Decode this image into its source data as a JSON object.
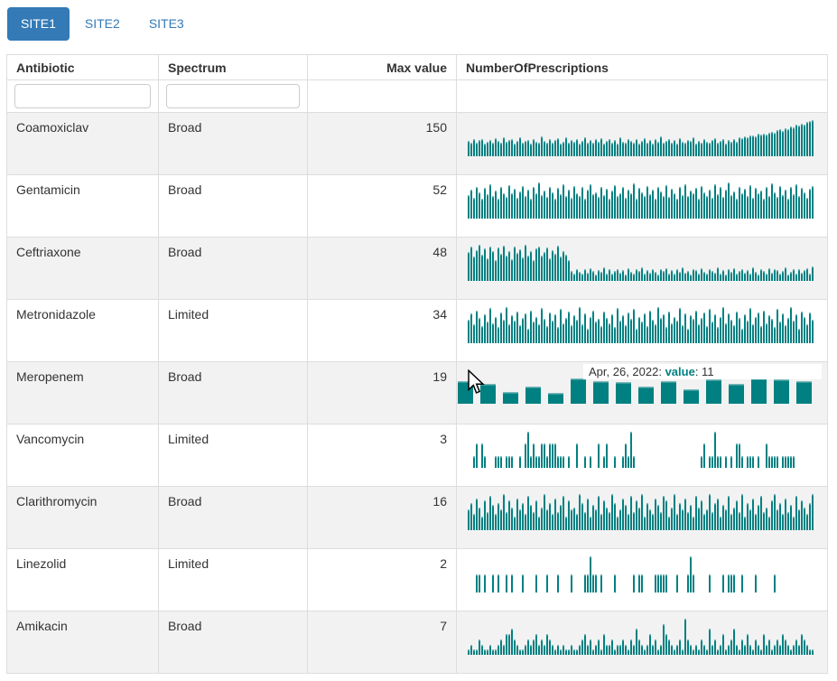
{
  "tabs": [
    {
      "label": "SITE1",
      "active": true
    },
    {
      "label": "SITE2",
      "active": false
    },
    {
      "label": "SITE3",
      "active": false
    }
  ],
  "colors": {
    "active_tab": "#337ab7",
    "tab_link": "#337ab7",
    "bar": "#008081",
    "bar_cap": "#79b8ba",
    "stripe": "#f2f2f2",
    "border": "#dddddd",
    "tooltip_value": "#008081"
  },
  "table": {
    "columns": [
      "Antibiotic",
      "Spectrum",
      "Max value",
      "NumberOfPrescriptions"
    ],
    "filters": [
      {
        "column": "Antibiotic",
        "value": ""
      },
      {
        "column": "Spectrum",
        "value": ""
      }
    ],
    "tooltip": {
      "row": "Meropenem",
      "date": "Apr, 26, 2022",
      "label": "value",
      "value": 11,
      "text_prefix": "Apr, 26, 2022: ",
      "text_label": "value",
      "text_suffix": ": 11"
    },
    "rows": [
      {
        "antibiotic": "Coamoxiclav",
        "spectrum": "Broad",
        "max_value": 150,
        "spark": {
          "type": "bar",
          "max": 150,
          "hovered": false,
          "values": [
            62,
            55,
            70,
            58,
            66,
            73,
            52,
            60,
            68,
            57,
            75,
            63,
            55,
            80,
            59,
            66,
            71,
            54,
            62,
            77,
            58,
            65,
            69,
            53,
            72,
            60,
            56,
            83,
            64,
            58,
            70,
            55,
            67,
            74,
            52,
            61,
            78,
            57,
            66,
            59,
            72,
            54,
            63,
            80,
            58,
            67,
            55,
            70,
            61,
            75,
            53,
            64,
            71,
            57,
            68,
            52,
            77,
            60,
            55,
            73,
            65,
            58,
            70,
            54,
            62,
            76,
            57,
            66,
            53,
            71,
            60,
            82,
            55,
            64,
            70,
            58,
            67,
            52,
            74,
            61,
            56,
            69,
            63,
            77,
            54,
            65,
            58,
            72,
            60,
            55,
            68,
            75,
            57,
            63,
            70,
            52,
            66,
            59,
            73,
            61,
            78,
            74,
            82,
            79,
            85,
            88,
            84,
            92,
            89,
            95,
            91,
            99,
            103,
            98,
            108,
            112,
            106,
            118,
            114,
            124,
            120,
            130,
            127,
            136,
            133,
            142,
            147,
            150
          ]
        }
      },
      {
        "antibiotic": "Gentamicin",
        "spectrum": "Broad",
        "max_value": 52,
        "spark": {
          "type": "bar",
          "max": 52,
          "hovered": false,
          "values": [
            34,
            42,
            30,
            46,
            38,
            29,
            44,
            35,
            50,
            33,
            40,
            28,
            45,
            37,
            31,
            48,
            36,
            43,
            30,
            39,
            47,
            33,
            41,
            29,
            45,
            36,
            52,
            34,
            40,
            31,
            46,
            38,
            28,
            44,
            35,
            49,
            32,
            42,
            30,
            47,
            37,
            33,
            45,
            29,
            41,
            50,
            35,
            38,
            31,
            46,
            34,
            43,
            28,
            40,
            48,
            33,
            37,
            45,
            30,
            42,
            36,
            51,
            29,
            44,
            38,
            32,
            47,
            35,
            41,
            28,
            45,
            39,
            33,
            48,
            31,
            43,
            37,
            29,
            46,
            34,
            50,
            32,
            40,
            36,
            44,
            28,
            47,
            38,
            33,
            42,
            30,
            49,
            35,
            45,
            31,
            41,
            52,
            34,
            39,
            29,
            46,
            37,
            43,
            32,
            48,
            30,
            44,
            36,
            40,
            28,
            45,
            33,
            51,
            38,
            31,
            47,
            34,
            42,
            29,
            46,
            35,
            49,
            32,
            44,
            38,
            30,
            43,
            47
          ]
        }
      },
      {
        "antibiotic": "Ceftriaxone",
        "spectrum": "Broad",
        "max_value": 48,
        "spark": {
          "type": "bar",
          "max": 48,
          "hovered": false,
          "values": [
            38,
            45,
            32,
            41,
            48,
            35,
            43,
            30,
            46,
            39,
            28,
            44,
            36,
            47,
            33,
            40,
            29,
            45,
            37,
            42,
            31,
            48,
            34,
            39,
            27,
            43,
            46,
            33,
            38,
            44,
            30,
            41,
            36,
            47,
            32,
            40,
            35,
            28,
            13,
            10,
            16,
            12,
            9,
            15,
            11,
            17,
            13,
            8,
            14,
            12,
            18,
            10,
            15,
            9,
            13,
            16,
            11,
            14,
            8,
            17,
            12,
            10,
            15,
            13,
            18,
            9,
            14,
            11,
            16,
            12,
            8,
            15,
            13,
            17,
            10,
            14,
            9,
            16,
            12,
            18,
            11,
            13,
            8,
            15,
            14,
            10,
            17,
            12,
            9,
            16,
            13,
            11,
            18,
            10,
            14,
            8,
            15,
            12,
            17,
            9,
            13,
            16,
            11,
            14,
            10,
            18,
            12,
            8,
            15,
            13,
            9,
            17,
            11,
            16,
            14,
            10,
            13,
            18,
            8,
            12,
            15,
            9,
            16,
            11,
            14,
            17,
            10,
            19
          ]
        }
      },
      {
        "antibiotic": "Metronidazole",
        "spectrum": "Limited",
        "max_value": 34,
        "spark": {
          "type": "bar",
          "max": 34,
          "hovered": false,
          "values": [
            22,
            28,
            18,
            31,
            24,
            16,
            27,
            20,
            33,
            19,
            25,
            15,
            29,
            22,
            34,
            18,
            26,
            21,
            30,
            17,
            24,
            28,
            14,
            31,
            20,
            25,
            18,
            33,
            23,
            16,
            29,
            21,
            27,
            15,
            32,
            19,
            24,
            30,
            17,
            26,
            22,
            34,
            18,
            28,
            14,
            25,
            31,
            20,
            23,
            16,
            30,
            24,
            19,
            27,
            15,
            33,
            21,
            26,
            17,
            29,
            23,
            32,
            14,
            25,
            20,
            28,
            16,
            31,
            22,
            18,
            34,
            24,
            27,
            15,
            30,
            19,
            25,
            21,
            33,
            17,
            28,
            14,
            26,
            23,
            31,
            18,
            24,
            29,
            16,
            32,
            20,
            27,
            15,
            25,
            34,
            19,
            28,
            22,
            17,
            30,
            24,
            14,
            27,
            21,
            33,
            18,
            25,
            29,
            16,
            31,
            19,
            26,
            23,
            15,
            32,
            20,
            28,
            17,
            24,
            34,
            21,
            27,
            14,
            30,
            25,
            18,
            29,
            22
          ]
        }
      },
      {
        "antibiotic": "Meropenem",
        "spectrum": "Broad",
        "max_value": 19,
        "spark": {
          "type": "bar",
          "max": 19,
          "hovered": true,
          "values": [
            17,
            15,
            9,
            13,
            8,
            19,
            17,
            16,
            13,
            17,
            11,
            18,
            15,
            19,
            18,
            17
          ]
        }
      },
      {
        "antibiotic": "Vancomycin",
        "spectrum": "Limited",
        "max_value": 3,
        "spark": {
          "type": "bar",
          "max": 3,
          "hovered": false,
          "values": [
            0,
            0,
            1,
            2,
            0,
            2,
            1,
            0,
            0,
            0,
            1,
            1,
            1,
            0,
            1,
            1,
            1,
            0,
            0,
            1,
            0,
            2,
            3,
            1,
            2,
            1,
            1,
            2,
            2,
            1,
            2,
            2,
            2,
            1,
            1,
            1,
            0,
            1,
            0,
            0,
            2,
            0,
            0,
            1,
            0,
            1,
            0,
            0,
            2,
            0,
            1,
            2,
            0,
            0,
            1,
            0,
            0,
            1,
            2,
            1,
            3,
            1,
            0,
            0,
            0,
            0,
            0,
            0,
            0,
            0,
            0,
            0,
            0,
            0,
            0,
            0,
            0,
            0,
            0,
            0,
            0,
            0,
            0,
            0,
            0,
            0,
            1,
            2,
            0,
            1,
            1,
            3,
            1,
            1,
            0,
            1,
            0,
            1,
            0,
            2,
            2,
            1,
            0,
            1,
            1,
            1,
            0,
            1,
            0,
            0,
            2,
            1,
            1,
            1,
            1,
            0,
            1,
            1,
            1,
            1,
            1,
            0,
            0,
            0,
            0,
            0,
            0,
            0
          ]
        }
      },
      {
        "antibiotic": "Clarithromycin",
        "spectrum": "Broad",
        "max_value": 16,
        "spark": {
          "type": "bar",
          "max": 16,
          "hovered": false,
          "values": [
            9,
            12,
            7,
            14,
            10,
            6,
            13,
            8,
            15,
            11,
            7,
            12,
            9,
            16,
            8,
            13,
            10,
            6,
            14,
            9,
            12,
            7,
            15,
            11,
            8,
            13,
            6,
            10,
            16,
            9,
            12,
            7,
            14,
            8,
            11,
            15,
            6,
            13,
            9,
            10,
            7,
            16,
            12,
            8,
            14,
            6,
            11,
            9,
            15,
            7,
            13,
            10,
            8,
            16,
            12,
            6,
            9,
            14,
            11,
            7,
            15,
            8,
            13,
            10,
            16,
            6,
            12,
            9,
            7,
            14,
            11,
            8,
            15,
            13,
            6,
            10,
            16,
            7,
            12,
            9,
            14,
            8,
            11,
            6,
            15,
            10,
            13,
            7,
            9,
            16,
            8,
            12,
            14,
            6,
            11,
            9,
            15,
            7,
            10,
            13,
            8,
            16,
            6,
            12,
            9,
            14,
            7,
            11,
            15,
            8,
            10,
            6,
            13,
            16,
            9,
            12,
            7,
            14,
            8,
            11,
            6,
            15,
            9,
            13,
            10,
            7,
            12,
            16
          ]
        }
      },
      {
        "antibiotic": "Linezolid",
        "spectrum": "Limited",
        "max_value": 2,
        "spark": {
          "type": "bar",
          "max": 2,
          "hovered": false,
          "values": [
            0,
            0,
            0,
            1,
            1,
            0,
            1,
            0,
            0,
            1,
            0,
            1,
            0,
            0,
            1,
            0,
            1,
            0,
            0,
            0,
            1,
            0,
            0,
            0,
            0,
            1,
            0,
            0,
            0,
            1,
            0,
            0,
            0,
            1,
            0,
            0,
            0,
            0,
            1,
            0,
            0,
            0,
            0,
            1,
            1,
            2,
            1,
            1,
            0,
            1,
            0,
            0,
            0,
            0,
            1,
            0,
            0,
            0,
            0,
            0,
            0,
            1,
            0,
            1,
            1,
            0,
            0,
            0,
            0,
            1,
            1,
            1,
            1,
            1,
            0,
            0,
            0,
            1,
            0,
            0,
            0,
            1,
            2,
            1,
            0,
            0,
            0,
            0,
            0,
            1,
            0,
            0,
            0,
            0,
            1,
            0,
            1,
            1,
            1,
            0,
            0,
            1,
            0,
            0,
            0,
            0,
            1,
            0,
            0,
            0,
            0,
            0,
            0,
            1,
            0,
            0,
            0,
            0,
            0,
            0,
            0,
            0,
            0,
            0,
            0,
            0,
            0,
            0
          ]
        }
      },
      {
        "antibiotic": "Amikacin",
        "spectrum": "Broad",
        "max_value": 7,
        "spark": {
          "type": "bar",
          "max": 7,
          "hovered": false,
          "values": [
            1,
            2,
            1,
            1,
            3,
            2,
            1,
            1,
            2,
            1,
            1,
            2,
            3,
            2,
            4,
            4,
            5,
            3,
            2,
            1,
            1,
            2,
            3,
            2,
            3,
            4,
            2,
            3,
            2,
            4,
            3,
            2,
            1,
            2,
            1,
            2,
            1,
            1,
            2,
            1,
            1,
            2,
            3,
            4,
            2,
            3,
            1,
            2,
            3,
            1,
            4,
            2,
            2,
            3,
            1,
            2,
            2,
            3,
            2,
            1,
            3,
            2,
            5,
            3,
            2,
            1,
            2,
            4,
            2,
            3,
            1,
            2,
            6,
            4,
            3,
            2,
            1,
            2,
            3,
            1,
            7,
            3,
            2,
            1,
            2,
            1,
            3,
            2,
            1,
            5,
            2,
            3,
            1,
            2,
            4,
            1,
            2,
            3,
            5,
            2,
            1,
            3,
            2,
            4,
            2,
            1,
            3,
            2,
            1,
            4,
            2,
            3,
            1,
            2,
            3,
            2,
            4,
            3,
            2,
            1,
            2,
            3,
            2,
            4,
            3,
            2,
            1,
            1
          ]
        }
      }
    ]
  }
}
